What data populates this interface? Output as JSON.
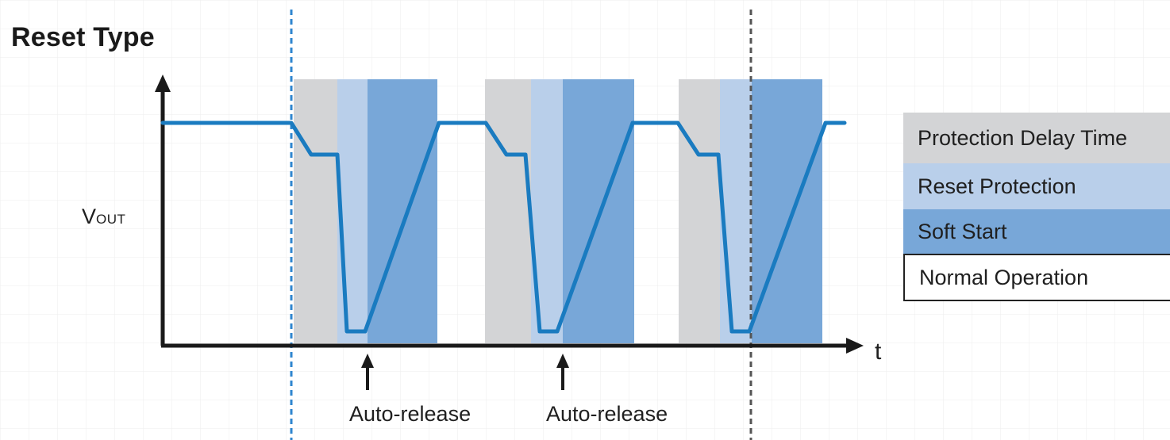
{
  "title": "Reset Type",
  "axes": {
    "y_label_main": "V",
    "y_label_sub": "OUT",
    "x_label": "t"
  },
  "annotations": [
    "Auto-release",
    "Auto-release"
  ],
  "legend": [
    {
      "label": "Protection Delay Time",
      "color": "#d3d4d6"
    },
    {
      "label": "Reset Protection",
      "color": "#b9cfea"
    },
    {
      "label": "Soft Start",
      "color": "#78a7d8"
    },
    {
      "label": "Normal Operation",
      "color": "#ffffff"
    }
  ],
  "colors": {
    "waveform": "#1a7bc0",
    "axis": "#1a1a1a",
    "marker_blue": "#2f86cf",
    "marker_gray": "#555555"
  }
}
